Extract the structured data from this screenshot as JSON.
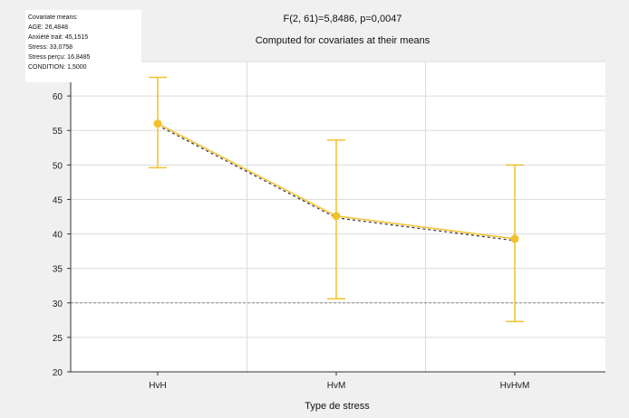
{
  "chart_data": {
    "type": "line",
    "title": "F(2, 61)=5,8486, p=0,0047",
    "subtitle": "Computed for covariates at their means",
    "xlabel": "Type de stress",
    "ylabel": "",
    "categories": [
      "HvH",
      "HvM",
      "HvHvM"
    ],
    "series": [
      {
        "values": [
          56.0,
          42.6,
          39.3
        ],
        "ci_lower": [
          49.6,
          30.6,
          27.3
        ],
        "ci_upper": [
          62.7,
          53.6,
          50.0
        ]
      }
    ],
    "ylim": [
      20,
      65
    ],
    "yticks": [
      20,
      25,
      30,
      35,
      40,
      45,
      50,
      55,
      60,
      65
    ],
    "reference_line": 30,
    "grid": true,
    "series_color": "#f2c12e",
    "info_box": [
      "Covariate means:",
      "AGE: 26,4848",
      "Anxiété trait: 45,1515",
      "Stress: 33,0758",
      "Stress perçu: 16,8485",
      "CONDITION: 1,5000"
    ]
  }
}
